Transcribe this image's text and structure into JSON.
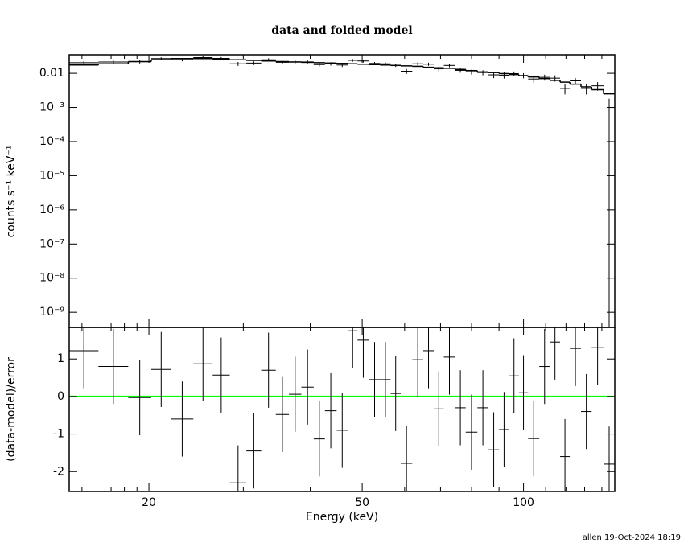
{
  "chart_data": {
    "type": "spectrum_residuals",
    "title": "data and folded model",
    "xlabel": "Energy (keV)",
    "footer": "allen 19-Oct-2024 18:19",
    "xscale": "log",
    "xlim": [
      14.2,
      148
    ],
    "xticks": [
      20,
      50,
      100
    ],
    "xminor_ticks": [
      15,
      16,
      17,
      18,
      19,
      30,
      40,
      60,
      70,
      80,
      90,
      110,
      120,
      130,
      140
    ],
    "bins": [
      14.2,
      16.1,
      18.3,
      20.2,
      22.0,
      24.2,
      26.3,
      28.3,
      30.4,
      32.4,
      34.5,
      36.5,
      38.5,
      40.6,
      42.6,
      44.8,
      47.0,
      49.0,
      51.5,
      54.0,
      56.5,
      59.0,
      62.0,
      65.0,
      68.0,
      71.0,
      74.5,
      78.0,
      82.0,
      86.0,
      90.0,
      94.0,
      98.0,
      102,
      107,
      112,
      117,
      122,
      128,
      134,
      141,
      148
    ],
    "color": "#000000",
    "panels": [
      {
        "ylabel": "counts s⁻¹ keV⁻¹",
        "yscale": "log",
        "ylim": [
          3.6e-10,
          0.035
        ],
        "yticks": [
          {
            "value": 1e-09,
            "label": "10⁻⁹"
          },
          {
            "value": 1e-08,
            "label": "10⁻⁸"
          },
          {
            "value": 1e-07,
            "label": "10⁻⁷"
          },
          {
            "value": 1e-06,
            "label": "10⁻⁶"
          },
          {
            "value": 1e-05,
            "label": "10⁻⁵"
          },
          {
            "value": 0.0001,
            "label": "10⁻⁴"
          },
          {
            "value": 0.001,
            "label": "10⁻³"
          },
          0.01
        ],
        "data": {
          "values": [
            0.0205,
            0.0215,
            0.0219,
            0.027,
            0.025,
            0.029,
            0.0275,
            0.019,
            0.02,
            0.025,
            0.021,
            0.0216,
            0.0216,
            0.018,
            0.019,
            0.0175,
            0.024,
            0.023,
            0.0195,
            0.019,
            0.0173,
            0.0115,
            0.019,
            0.0185,
            0.0135,
            0.017,
            0.0122,
            0.011,
            0.0105,
            0.009,
            0.0088,
            0.0098,
            0.0086,
            0.0068,
            0.0076,
            0.0072,
            0.0036,
            0.006,
            0.0036,
            0.0043,
            0.0009
          ],
          "errors": [
            0.0025,
            0.0025,
            0.0025,
            0.0025,
            0.0025,
            0.0025,
            0.0025,
            0.0025,
            0.0025,
            0.0025,
            0.0022,
            0.0022,
            0.0022,
            0.0022,
            0.0022,
            0.0022,
            0.0022,
            0.0022,
            0.002,
            0.002,
            0.002,
            0.002,
            0.002,
            0.002,
            0.002,
            0.002,
            0.0018,
            0.0018,
            0.0018,
            0.0018,
            0.0018,
            0.0015,
            0.0015,
            0.0015,
            0.0015,
            0.0015,
            0.0012,
            0.0012,
            0.0012,
            0.0012,
            0.0009
          ]
        },
        "model": {
          "values": [
            0.0175,
            0.019,
            0.022,
            0.025,
            0.027,
            0.027,
            0.026,
            0.025,
            0.024,
            0.023,
            0.022,
            0.0215,
            0.021,
            0.0205,
            0.02,
            0.0195,
            0.019,
            0.0185,
            0.018,
            0.0175,
            0.017,
            0.0165,
            0.016,
            0.015,
            0.0145,
            0.014,
            0.013,
            0.012,
            0.011,
            0.0105,
            0.0098,
            0.0092,
            0.0085,
            0.0078,
            0.007,
            0.0062,
            0.0055,
            0.0048,
            0.004,
            0.0033,
            0.0025
          ]
        }
      },
      {
        "ylabel": "(data-model)/error",
        "yscale": "linear",
        "ylim": [
          -2.53,
          1.84
        ],
        "yticks": [
          -2,
          -1,
          0,
          1
        ],
        "reference_line": {
          "value": 0,
          "color": "#00ff00"
        },
        "data": {
          "values": [
            1.22,
            0.8,
            -0.03,
            0.72,
            -0.6,
            0.87,
            0.57,
            -2.3,
            -1.45,
            0.7,
            -0.48,
            0.06,
            0.25,
            -1.13,
            -0.38,
            -0.9,
            1.75,
            1.5,
            0.45,
            0.45,
            0.08,
            -1.78,
            0.98,
            1.22,
            -0.33,
            1.05,
            -0.3,
            -0.95,
            -0.3,
            -1.42,
            -0.88,
            0.55,
            0.1,
            -1.12,
            0.8,
            1.45,
            -1.6,
            1.28,
            -0.4,
            1.3,
            -1.8
          ],
          "errors": [
            1,
            1,
            1,
            1,
            1,
            1,
            1,
            1,
            1,
            1,
            1,
            1,
            1,
            1,
            1,
            1,
            1,
            1,
            1,
            1,
            1,
            1,
            1,
            1,
            1,
            1,
            1,
            1,
            1,
            1,
            1,
            1,
            1,
            1,
            1,
            1,
            1,
            1,
            1,
            1,
            1
          ]
        }
      }
    ]
  }
}
